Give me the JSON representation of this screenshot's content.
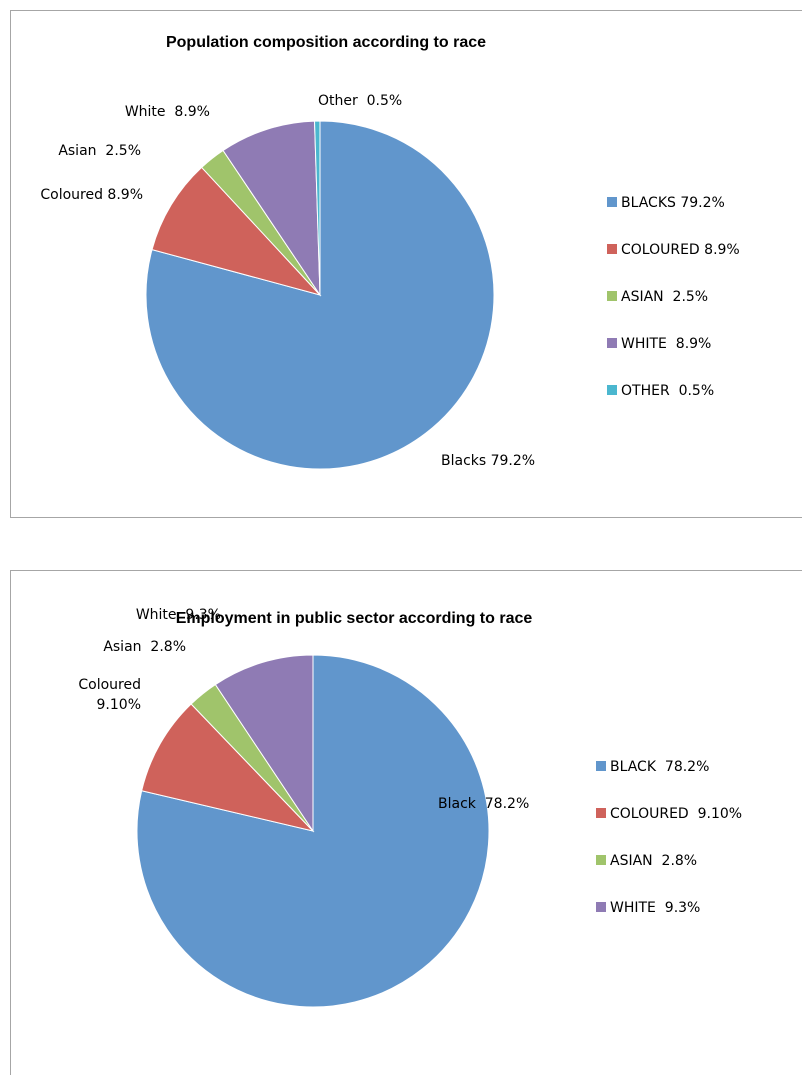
{
  "chart_data": [
    {
      "type": "pie",
      "title": "Population composition according to race",
      "slices": [
        {
          "legend": "BLACKS 79.2%",
          "data_label": "Blacks 79.2%",
          "value": 79.2,
          "color": "#6196cc"
        },
        {
          "legend": "COLOURED 8.9%",
          "data_label": "Coloured 8.9%",
          "value": 8.9,
          "color": "#cf625b"
        },
        {
          "legend": "ASIAN  2.5%",
          "data_label": "Asian  2.5%",
          "value": 2.5,
          "color": "#a0c46b"
        },
        {
          "legend": "WHITE  8.9%",
          "data_label": "White  8.9%",
          "value": 8.9,
          "color": "#8f7bb4"
        },
        {
          "legend": "OTHER  0.5%",
          "data_label": "Other  0.5%",
          "value": 0.5,
          "color": "#4bb7cf"
        }
      ],
      "legend_position": "right"
    },
    {
      "type": "pie",
      "title": "Employment in public sector according to race",
      "slices": [
        {
          "legend": "BLACK  78.2%",
          "data_label": "Black  78.2%",
          "value": 78.2,
          "color": "#6196cc"
        },
        {
          "legend": "COLOURED  9.10%",
          "data_label": [
            "Coloured",
            "9.10%"
          ],
          "value": 9.1,
          "color": "#cf625b"
        },
        {
          "legend": "ASIAN  2.8%",
          "data_label": "Asian  2.8%",
          "value": 2.8,
          "color": "#a0c46b"
        },
        {
          "legend": "WHITE  9.3%",
          "data_label": "White  9.3%",
          "value": 9.3,
          "color": "#8f7bb4"
        }
      ],
      "legend_position": "right"
    }
  ]
}
